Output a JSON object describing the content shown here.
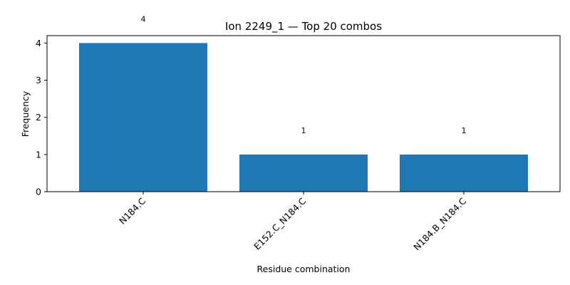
{
  "chart_data": {
    "type": "bar",
    "title": "Ion 2249_1 — Top 20 combos",
    "xlabel": "Residue combination",
    "ylabel": "Frequency",
    "categories": [
      "N184.C",
      "E152.C_N184.C",
      "N184.B_N184.C"
    ],
    "values": [
      4,
      1,
      1
    ],
    "data_labels": [
      "4",
      "1",
      "1"
    ],
    "ylim": [
      0,
      4.2
    ],
    "yticks": [
      0,
      1,
      2,
      3,
      4
    ],
    "bar_color": "#1f77b4",
    "grid": false,
    "x_tick_rotation": 45
  }
}
